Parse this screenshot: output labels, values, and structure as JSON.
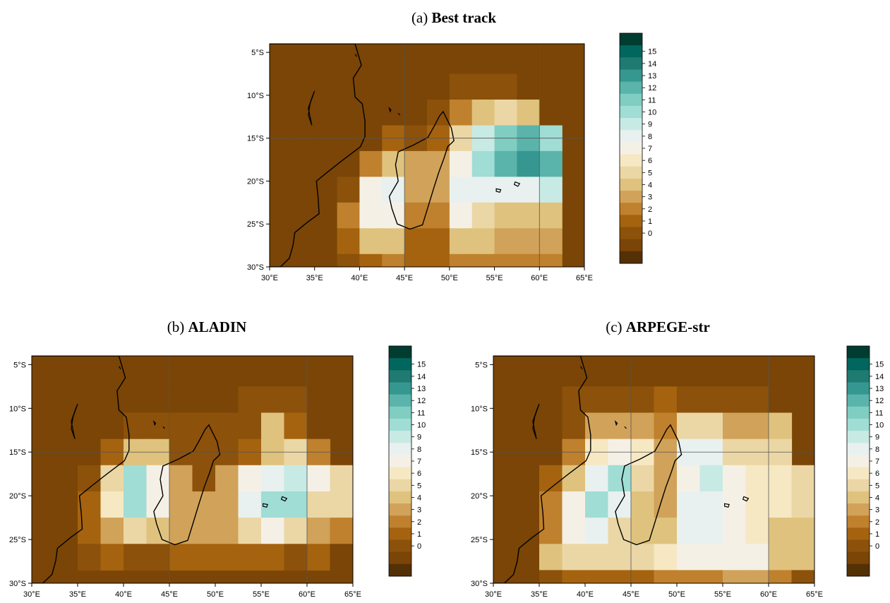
{
  "panels": [
    {
      "id": "a",
      "label": "(a)",
      "title": "Best track",
      "grid": [
        [
          0,
          0,
          0,
          0,
          0,
          0,
          0,
          0,
          0,
          0,
          0,
          0
        ],
        [
          0,
          0,
          0,
          0,
          0,
          0,
          0,
          0,
          1,
          1,
          1,
          0
        ],
        [
          0,
          0,
          0,
          0,
          0,
          0,
          0,
          1,
          3,
          5,
          6,
          5
        ],
        [
          0,
          0,
          0,
          0,
          0,
          2,
          1,
          2,
          6,
          10,
          12,
          13,
          11
        ],
        [
          0,
          0,
          0,
          0,
          3,
          5,
          4,
          4,
          8,
          11,
          13,
          14,
          13
        ],
        [
          0,
          0,
          0,
          1,
          8,
          9,
          4,
          4,
          9,
          9,
          9,
          9,
          10
        ],
        [
          0,
          0,
          0,
          3,
          8,
          8,
          3,
          3,
          8,
          6,
          5,
          5,
          5
        ],
        [
          0,
          0,
          0,
          2,
          5,
          5,
          2,
          2,
          5,
          5,
          4,
          4,
          4
        ],
        [
          0,
          0,
          0,
          1,
          2,
          3,
          2,
          2,
          3,
          3,
          3,
          3,
          3
        ]
      ]
    },
    {
      "id": "b",
      "label": "(b)",
      "title": "ALADIN",
      "grid": [
        [
          0,
          0,
          0,
          0,
          0,
          0,
          0,
          0,
          0,
          0,
          0,
          0,
          0
        ],
        [
          0,
          0,
          0,
          0,
          0,
          0,
          0,
          0,
          0,
          1,
          1,
          1,
          0
        ],
        [
          0,
          0,
          0,
          0,
          1,
          1,
          1,
          1,
          1,
          1,
          5,
          2,
          0
        ],
        [
          0,
          0,
          0,
          2,
          5,
          5,
          1,
          1,
          1,
          2,
          5,
          6,
          3
        ],
        [
          0,
          0,
          1,
          6,
          11,
          8,
          4,
          1,
          4,
          8,
          9,
          10,
          8,
          6
        ],
        [
          0,
          0,
          2,
          7,
          11,
          8,
          4,
          4,
          4,
          9,
          11,
          11,
          6,
          6
        ],
        [
          0,
          0,
          2,
          4,
          6,
          5,
          4,
          4,
          4,
          6,
          8,
          6,
          4,
          3
        ],
        [
          0,
          0,
          1,
          2,
          1,
          1,
          2,
          2,
          2,
          2,
          2,
          1,
          2,
          0
        ]
      ]
    },
    {
      "id": "c",
      "label": "(c)",
      "title": "ARPEGE-str",
      "grid": [
        [
          0,
          0,
          0,
          0,
          0,
          0,
          0,
          0,
          0,
          0,
          0,
          0,
          0
        ],
        [
          0,
          0,
          0,
          1,
          1,
          1,
          1,
          2,
          1,
          1,
          1,
          1,
          0
        ],
        [
          0,
          0,
          0,
          1,
          4,
          4,
          4,
          3,
          6,
          6,
          4,
          4,
          5
        ],
        [
          0,
          0,
          0,
          3,
          7,
          8,
          7,
          4,
          9,
          9,
          6,
          6,
          6
        ],
        [
          0,
          0,
          2,
          5,
          9,
          11,
          6,
          4,
          8,
          10,
          8,
          7,
          7,
          6
        ],
        [
          0,
          0,
          3,
          8,
          11,
          9,
          5,
          4,
          9,
          9,
          8,
          7,
          7,
          6
        ],
        [
          0,
          0,
          3,
          8,
          9,
          6,
          5,
          5,
          9,
          9,
          8,
          7,
          5,
          5
        ],
        [
          0,
          0,
          5,
          6,
          6,
          6,
          6,
          7,
          8,
          8,
          8,
          8,
          5,
          5
        ],
        [
          0,
          0,
          1,
          2,
          2,
          2,
          2,
          3,
          3,
          3,
          4,
          4,
          3,
          1
        ]
      ]
    }
  ],
  "axes": {
    "x_ticks": [
      "30°E",
      "35°E",
      "40°E",
      "45°E",
      "50°E",
      "55°E",
      "60°E",
      "65°E"
    ],
    "y_ticks": [
      "5°S",
      "10°S",
      "15°S",
      "20°S",
      "25°S",
      "30°S"
    ]
  },
  "colorbar": {
    "ticks": [
      "15",
      "14",
      "13",
      "12",
      "11",
      "10",
      "9",
      "8",
      "7",
      "6",
      "5",
      "4",
      "3",
      "2",
      "1",
      "0"
    ],
    "colors": [
      "#543005",
      "#7a4506",
      "#8c510a",
      "#a5630f",
      "#bf812d",
      "#d1a259",
      "#dfc27d",
      "#ebd7a5",
      "#f6e8c3",
      "#f5f0e6",
      "#e8f1ef",
      "#c7eae5",
      "#a0ddd4",
      "#80cdc1",
      "#5ab4ac",
      "#35978f",
      "#1f7a72",
      "#01665e",
      "#003c30"
    ]
  }
}
